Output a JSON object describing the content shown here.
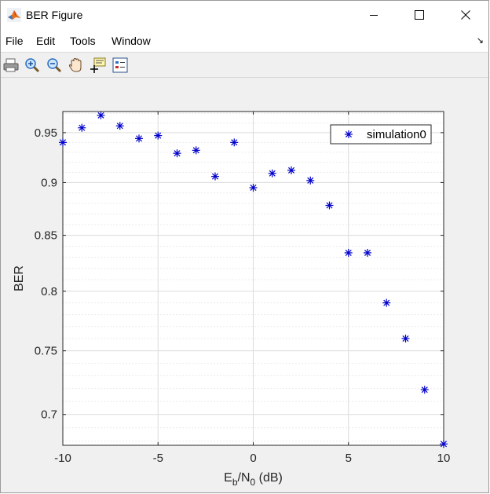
{
  "window": {
    "title": "BER Figure"
  },
  "menu": [
    "File",
    "Edit",
    "Tools",
    "Window"
  ],
  "toolbar": [
    "print-icon",
    "zoom-in-icon",
    "zoom-out-icon",
    "pan-hand-icon",
    "data-cursor-icon",
    "legend-toggle-icon"
  ],
  "colors": {
    "marker": "#0000cc",
    "axes_bg": "#ffffff",
    "figure_bg": "#f0f0f0",
    "grid": "#dcdcdc",
    "minor_grid": "#ebebeb"
  },
  "chart_data": {
    "type": "scatter",
    "title": "",
    "xlabel_parts": {
      "base1": "E",
      "sub1": "b",
      "mid": "/N",
      "sub2": "0",
      "rest": " (dB)"
    },
    "ylabel": "BER",
    "xlim": [
      -10,
      10
    ],
    "ylim": [
      0.677,
      0.972
    ],
    "yscale": "log",
    "grid": true,
    "minor_grid": true,
    "xticks": [
      -10,
      -5,
      0,
      5,
      10
    ],
    "xtick_labels": [
      "-10",
      "-5",
      "0",
      "5",
      "10"
    ],
    "yticks": [
      0.7,
      0.75,
      0.8,
      0.85,
      0.9,
      0.95
    ],
    "ytick_labels": [
      "0.7",
      "0.75",
      "0.8",
      "0.85",
      "0.9",
      "0.95"
    ],
    "legend_position": "top-right",
    "series": [
      {
        "name": "simulation0",
        "marker": "*",
        "x": [
          -10,
          -9,
          -8,
          -7,
          -6,
          -5,
          -4,
          -3,
          -2,
          -1,
          0,
          1,
          2,
          3,
          4,
          5,
          6,
          7,
          8,
          9,
          10
        ],
        "y": [
          0.94,
          0.955,
          0.968,
          0.957,
          0.944,
          0.947,
          0.929,
          0.932,
          0.906,
          0.94,
          0.895,
          0.909,
          0.912,
          0.902,
          0.878,
          0.834,
          0.834,
          0.79,
          0.76,
          0.719,
          0.678
        ]
      }
    ]
  }
}
